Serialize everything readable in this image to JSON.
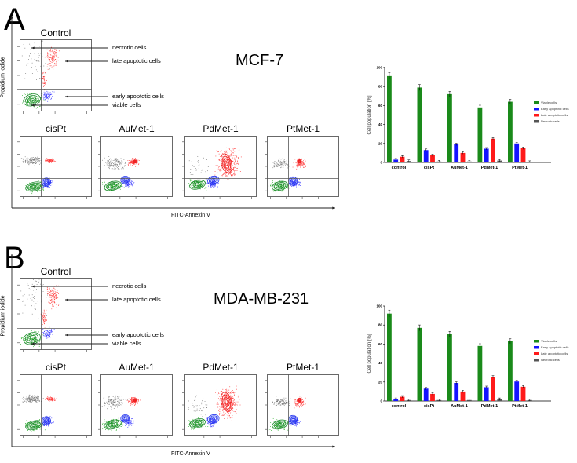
{
  "panels": [
    {
      "letter": "A",
      "cell_line": "MCF-7",
      "y_axis_label": "Propidium iodide",
      "x_axis_label": "FITC-Annexin V",
      "control_title": "Control",
      "annotations": [
        "necrotic cells",
        "late apoptotic cells",
        "early apoptotic cells",
        "viable cells"
      ],
      "treatment_titles": [
        "cisPt",
        "AuMet-1",
        "PdMet-1",
        "PtMet-1"
      ]
    },
    {
      "letter": "B",
      "cell_line": "MDA-MB-231",
      "y_axis_label": "Propidium iodide",
      "x_axis_label": "FITC-Annexin V",
      "control_title": "Control",
      "annotations": [
        "necrotic cells",
        "late apoptotic cells",
        "early apoptotic cells",
        "viable cells"
      ],
      "treatment_titles": [
        "cisPt",
        "AuMet-1",
        "PdMet-1",
        "PtMet-1"
      ]
    }
  ],
  "chart_data": [
    {
      "type": "bar",
      "title": "MCF-7",
      "ylabel": "Cell population [%]",
      "xlabel": "",
      "ylim": [
        0,
        100
      ],
      "yticks": [
        "0",
        "20",
        "40",
        "60",
        "80",
        "100"
      ],
      "categories": [
        "control",
        "cisPt",
        "AuMet-1",
        "PdMet-1",
        "PtMet-1"
      ],
      "legend_position": "right",
      "series": [
        {
          "name": "Viable cells",
          "color": "#1a8a1a",
          "values": [
            91,
            79,
            72,
            58,
            64
          ]
        },
        {
          "name": "Early apoptotic cells",
          "color": "#1414ff",
          "values": [
            3,
            13,
            19,
            14.5,
            20
          ]
        },
        {
          "name": "Late apoptotic cells",
          "color": "#ff1a1a",
          "values": [
            6,
            7.5,
            10,
            25,
            15
          ]
        },
        {
          "name": "Necrotic cells",
          "color": "#555555",
          "values": [
            1.5,
            1,
            1,
            2,
            0.5
          ]
        }
      ]
    },
    {
      "type": "bar",
      "title": "MDA-MB-231",
      "ylabel": "Cell population [%]",
      "xlabel": "",
      "ylim": [
        0,
        100
      ],
      "yticks": [
        "0",
        "20",
        "40",
        "60",
        "80",
        "100"
      ],
      "categories": [
        "control",
        "cisPt",
        "AuMet-1",
        "PdMet-1",
        "PtMet-1"
      ],
      "legend_position": "right",
      "series": [
        {
          "name": "Viable cells",
          "color": "#1a8a1a",
          "values": [
            92,
            77,
            70.5,
            58,
            63
          ]
        },
        {
          "name": "Early apoptotic cells",
          "color": "#1414ff",
          "values": [
            2,
            13,
            19,
            14.5,
            20.5
          ]
        },
        {
          "name": "Late apoptotic cells",
          "color": "#ff1a1a",
          "values": [
            4.5,
            7.5,
            10,
            25.5,
            15
          ]
        },
        {
          "name": "Necrotic cells",
          "color": "#555555",
          "values": [
            1,
            1,
            1,
            2,
            1
          ]
        }
      ]
    }
  ]
}
